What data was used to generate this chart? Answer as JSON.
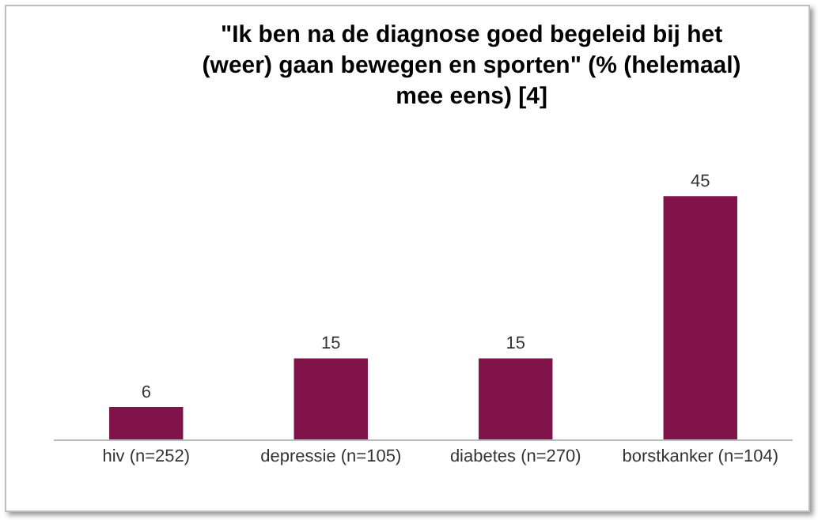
{
  "chart_data": {
    "type": "bar",
    "title": "\"Ik ben na de diagnose goed begeleid bij het\n(weer) gaan bewegen en sporten\" (% (helemaal)\nmee eens) [4]",
    "categories": [
      "hiv (n=252)",
      "depressie (n=105)",
      "diabetes (n=270)",
      "borstkanker (n=104)"
    ],
    "values": [
      6,
      15,
      15,
      45
    ],
    "color": "#80134a",
    "data_labels": true,
    "tick_labels": "x"
  }
}
